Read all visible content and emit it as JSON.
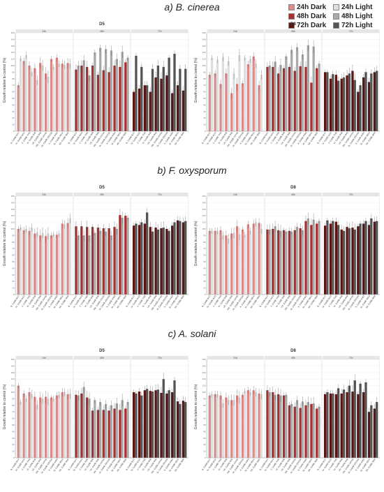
{
  "legend": {
    "items": [
      {
        "label": "24h Dark",
        "color": "#d98c8c"
      },
      {
        "label": "24h Light",
        "color": "#dedede"
      },
      {
        "label": "48h Dark",
        "color": "#a83232"
      },
      {
        "label": "48h Light",
        "color": "#aaaaaa"
      },
      {
        "label": "72h Dark",
        "color": "#5a1414"
      },
      {
        "label": "72h Light",
        "color": "#555555"
      }
    ]
  },
  "sections": [
    {
      "title": "a) B. cinerea"
    },
    {
      "title": "b) F. oxysporum"
    },
    {
      "title": "c) A. solani"
    }
  ],
  "chart_data": [
    {
      "type": "bar",
      "section": "a) B. cinerea",
      "title": "D5",
      "ylabel": "Growth relative to control (%)",
      "strips": [
        "24h",
        "48h",
        "72h"
      ],
      "ylim": [
        0,
        150
      ],
      "categories": [
        "B. CoMB 0r17",
        "IV. CoMB Ini13",
        "V. CoMB 7Hl3",
        "VI. CoMB 9H8",
        "VII. CoMB 9Hb",
        "VIII. CoMB 14H1b",
        "IX. CoMB 33H11b",
        "X. CoMB 4Hk3",
        "XI. CoMB Nb14",
        "XII. CoMB Nb4f"
      ],
      "series": [
        {
          "group": "24h",
          "dark": [
            70,
            107,
            100,
            96,
            104,
            88,
            110,
            112,
            103,
            104
          ],
          "light": [
            111,
            116,
            90,
            78,
            100,
            83,
            98,
            103,
            101,
            103
          ]
        },
        {
          "group": "48h",
          "dark": [
            94,
            100,
            98,
            100,
            86,
            93,
            90,
            100,
            98,
            105
          ],
          "light": [
            100,
            108,
            85,
            120,
            127,
            125,
            123,
            110,
            121,
            112
          ]
        },
        {
          "group": "72h",
          "dark": [
            60,
            65,
            70,
            60,
            82,
            80,
            85,
            58,
            70,
            62
          ],
          "light": [
            115,
            98,
            70,
            95,
            100,
            98,
            112,
            118,
            95,
            95
          ]
        }
      ]
    },
    {
      "type": "bar",
      "section": "a) B. cinerea",
      "title": "D8",
      "ylabel": "Growth relative to control (%)",
      "strips": [
        "24h",
        "48h",
        "72h"
      ],
      "ylim": [
        0,
        150
      ],
      "categories": [
        "B. CoMB 0r17",
        "IV. CoMB Ini13",
        "V. CoMB 7Hl3",
        "VI. CoMB 9H8",
        "VII. CoMB 9Hb",
        "VIII. CoMB 14H1b",
        "IX. CoMB 33H11b",
        "X. CoMB 4Hk3",
        "XI. CoMB Nb14",
        "XII. CoMB Nb4f"
      ],
      "series": [
        {
          "group": "24h",
          "dark": [
            86,
            88,
            72,
            88,
            58,
            72,
            73,
            102,
            114,
            70
          ],
          "light": [
            112,
            109,
            113,
            107,
            88,
            116,
            112,
            110,
            103,
            86
          ]
        },
        {
          "group": "48h",
          "dark": [
            98,
            98,
            88,
            96,
            98,
            92,
            99,
            98,
            74,
            96
          ],
          "light": [
            100,
            106,
            101,
            114,
            124,
            128,
            117,
            131,
            129,
            103
          ]
        },
        {
          "group": "72h",
          "dark": [
            90,
            80,
            86,
            80,
            85,
            92,
            60,
            82,
            75,
            90
          ],
          "light": [
            90,
            87,
            77,
            82,
            88,
            78,
            70,
            90,
            88,
            92
          ]
        }
      ]
    },
    {
      "type": "bar",
      "section": "b) F. oxysporum",
      "title": "D5",
      "ylabel": "Growth relative to control (%)",
      "strips": [
        "24h",
        "48h",
        "72h"
      ],
      "ylim": [
        0,
        150
      ],
      "categories": [
        "B. CoMB 0r17",
        "IV. CoMB Ini13",
        "V. CoMB 7Hl3",
        "VI. CoMB 9H8",
        "VII. CoMB 9Hb",
        "VIII. CoMB 14H1b",
        "IX. CoMB 33H11b",
        "X. CoMB 4Hk3",
        "XI. CoMB Nb14",
        "XII. CoMB Nb4f"
      ],
      "series": [
        {
          "group": "24h",
          "dark": [
            100,
            98,
            97,
            93,
            90,
            89,
            90,
            91,
            108,
            109
          ],
          "light": [
            102,
            100,
            102,
            95,
            94,
            93,
            92,
            93,
            107,
            116
          ]
        },
        {
          "group": "48h",
          "dark": [
            104,
            104,
            103,
            103,
            102,
            101,
            101,
            103,
            121,
            120
          ],
          "light": [
            90,
            90,
            90,
            94,
            97,
            96,
            90,
            100,
            117,
            117
          ]
        },
        {
          "group": "72h",
          "dark": [
            105,
            106,
            108,
            103,
            102,
            101,
            100,
            105,
            113,
            110
          ],
          "light": [
            108,
            110,
            125,
            96,
            99,
            102,
            97,
            110,
            112,
            112
          ]
        }
      ]
    },
    {
      "type": "bar",
      "section": "b) F. oxysporum",
      "title": "D8",
      "ylabel": "Growth relative to control (%)",
      "strips": [
        "24h",
        "48h",
        "72h"
      ],
      "ylim": [
        0,
        150
      ],
      "categories": [
        "B. CoMB 0r17",
        "IV. CoMB Ini13",
        "V. CoMB 7Hl3",
        "VI. CoMB 9H8",
        "VII. CoMB 9Hb",
        "VIII. CoMB 14H1b",
        "IX. CoMB 33H11b",
        "X. CoMB 4Hk3",
        "XI. CoMB Nb14",
        "XII. CoMB Nb4f"
      ],
      "series": [
        {
          "group": "24h",
          "dark": [
            97,
            97,
            98,
            90,
            93,
            104,
            99,
            107,
            108,
            109
          ],
          "light": [
            97,
            97,
            90,
            85,
            94,
            92,
            91,
            97,
            110,
            100
          ]
        },
        {
          "group": "48h",
          "dark": [
            99,
            100,
            98,
            98,
            97,
            98,
            101,
            112,
            106,
            108
          ],
          "light": [
            99,
            104,
            97,
            96,
            96,
            103,
            98,
            116,
            114,
            112
          ]
        },
        {
          "group": "72h",
          "dark": [
            105,
            108,
            111,
            99,
            103,
            102,
            104,
            108,
            106,
            111
          ],
          "light": [
            113,
            112,
            106,
            97,
            101,
            99,
            108,
            112,
            116,
            112
          ]
        }
      ]
    },
    {
      "type": "bar",
      "section": "c) A. solani",
      "title": "D5",
      "ylabel": "Growth relative to control (%)",
      "strips": [
        "24h",
        "48h",
        "72h"
      ],
      "ylim": [
        0,
        150
      ],
      "categories": [
        "B. CoMB 0r17",
        "IV. CoMB Ini13",
        "V. CoMB 7Hl3",
        "VI. CoMB 9H8",
        "VII. CoMB 9Hb",
        "VIII. CoMB 14H1b",
        "IX. CoMB 33H11b",
        "X. CoMB 4Hk3",
        "XI. CoMB Nb14",
        "XII. CoMB Nb4f"
      ],
      "series": [
        {
          "group": "24h",
          "dark": [
            110,
            98,
            100,
            93,
            92,
            93,
            92,
            95,
            100,
            97
          ],
          "light": [
            85,
            90,
            97,
            81,
            90,
            90,
            90,
            96,
            100,
            98
          ]
        },
        {
          "group": "48h",
          "dark": [
            96,
            98,
            92,
            72,
            73,
            73,
            72,
            75,
            73,
            75
          ],
          "light": [
            95,
            108,
            90,
            88,
            85,
            82,
            80,
            83,
            88,
            85
          ]
        },
        {
          "group": "72h",
          "dark": [
            100,
            101,
            103,
            102,
            103,
            99,
            98,
            100,
            86,
            87
          ],
          "light": [
            98,
            95,
            105,
            101,
            104,
            120,
            103,
            118,
            82,
            85
          ]
        }
      ]
    },
    {
      "type": "bar",
      "section": "c) A. solani",
      "title": "D8",
      "ylabel": "Growth relative to control (%)",
      "strips": [
        "24h",
        "48h",
        "72h"
      ],
      "ylim": [
        0,
        150
      ],
      "categories": [
        "B. CoMB 0r17",
        "IV. CoMB Ini13",
        "V. CoMB 7Hl3",
        "VI. CoMB 9H8",
        "VII. CoMB 9Hb",
        "VIII. CoMB 14H1b",
        "IX. CoMB 33H11b",
        "X. CoMB 4Hk3",
        "XI. CoMB Nb14",
        "XII. CoMB Nb4f"
      ],
      "series": [
        {
          "group": "24h",
          "dark": [
            95,
            97,
            95,
            92,
            88,
            95,
            96,
            103,
            103,
            98
          ],
          "light": [
            97,
            97,
            83,
            88,
            88,
            92,
            102,
            100,
            100,
            97
          ]
        },
        {
          "group": "48h",
          "dark": [
            103,
            100,
            97,
            95,
            80,
            78,
            76,
            80,
            82,
            75
          ],
          "light": [
            100,
            96,
            95,
            96,
            82,
            88,
            86,
            85,
            83,
            78
          ]
        },
        {
          "group": "72h",
          "dark": [
            97,
            98,
            97,
            98,
            100,
            101,
            97,
            100,
            70,
            75
          ],
          "light": [
            100,
            98,
            106,
            104,
            110,
            118,
            113,
            115,
            80,
            85
          ]
        }
      ]
    }
  ]
}
